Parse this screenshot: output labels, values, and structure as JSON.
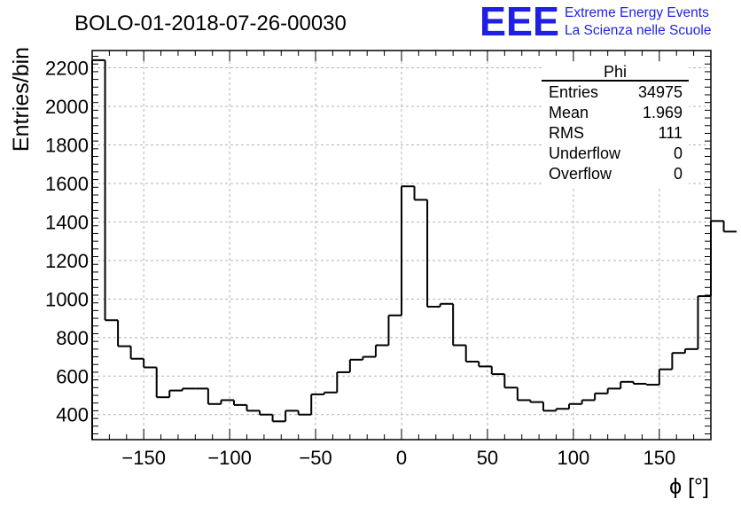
{
  "header": {
    "run_title": "BOLO-01-2018-07-26-00030",
    "logo_text": "EEE",
    "logo_line1": "Extreme Energy Events",
    "logo_line2": "La Scienza nelle Scuole",
    "logo_color": "#1f1fe6"
  },
  "stats_box": {
    "title": "Phi",
    "rows": [
      {
        "label": "Entries",
        "value": "34975"
      },
      {
        "label": "Mean",
        "value": "1.969"
      },
      {
        "label": "RMS",
        "value": "111"
      },
      {
        "label": "Underflow",
        "value": "0"
      },
      {
        "label": "Overflow",
        "value": "0"
      }
    ]
  },
  "chart_data": {
    "type": "histogram",
    "title": "BOLO-01-2018-07-26-00030",
    "xlabel": "ϕ [°]",
    "ylabel": "Entries/bin",
    "xlim": [
      -180,
      180
    ],
    "ylim": [
      270,
      2290
    ],
    "grid": true,
    "line_color": "#000000",
    "x_ticks": [
      -150,
      -100,
      -50,
      0,
      50,
      100,
      150
    ],
    "x_tick_labels": [
      "−150",
      "−100",
      "−50",
      "0",
      "50",
      "100",
      "150"
    ],
    "y_ticks": [
      400,
      600,
      800,
      1000,
      1200,
      1400,
      1600,
      1800,
      2000,
      2200
    ],
    "y_tick_labels": [
      "400",
      "600",
      "800",
      "1000",
      "1200",
      "1400",
      "1600",
      "1800",
      "2000",
      "2200"
    ],
    "bin_edges_start": -180,
    "bin_width": 7.5,
    "bin_values": [
      2240,
      890,
      755,
      690,
      645,
      490,
      525,
      535,
      535,
      455,
      475,
      450,
      420,
      400,
      365,
      420,
      400,
      505,
      515,
      620,
      685,
      700,
      760,
      915,
      1585,
      1515,
      960,
      975,
      760,
      675,
      650,
      610,
      540,
      475,
      465,
      420,
      430,
      455,
      475,
      510,
      535,
      570,
      560,
      555,
      635,
      720,
      740,
      1015,
      1405,
      1350
    ]
  }
}
